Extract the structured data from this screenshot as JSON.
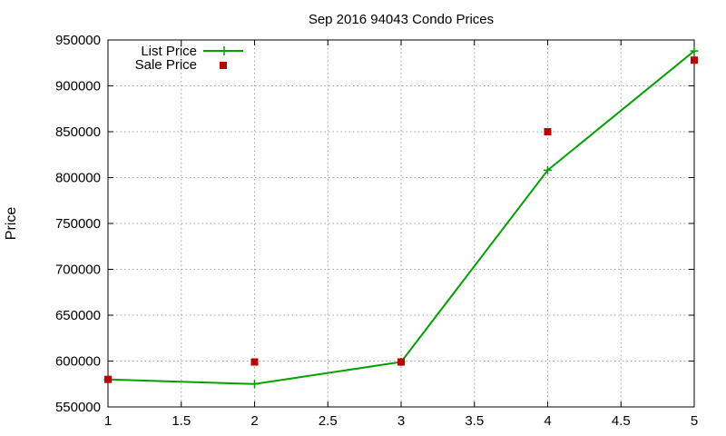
{
  "chart_data": {
    "type": "line",
    "title": "Sep 2016 94043 Condo Prices",
    "xlabel": "",
    "ylabel": "Price",
    "xlim": [
      1,
      5
    ],
    "ylim": [
      550000,
      950000
    ],
    "x_ticks": [
      "1",
      "1.5",
      "2",
      "2.5",
      "3",
      "3.5",
      "4",
      "4.5",
      "5"
    ],
    "y_ticks": [
      "550000",
      "600000",
      "650000",
      "700000",
      "750000",
      "800000",
      "850000",
      "900000",
      "950000"
    ],
    "grid": true,
    "legend_position": "top-left",
    "series": [
      {
        "name": "List Price",
        "style": "line-with-plus-markers",
        "color": "#00a000",
        "x": [
          1,
          2,
          3,
          4,
          5
        ],
        "values": [
          580000,
          575000,
          599000,
          808000,
          938000
        ]
      },
      {
        "name": "Sale Price",
        "style": "square-markers",
        "color": "#c00000",
        "x": [
          1,
          2,
          3,
          4,
          5
        ],
        "values": [
          580000,
          599000,
          599000,
          850000,
          928000
        ]
      }
    ]
  }
}
